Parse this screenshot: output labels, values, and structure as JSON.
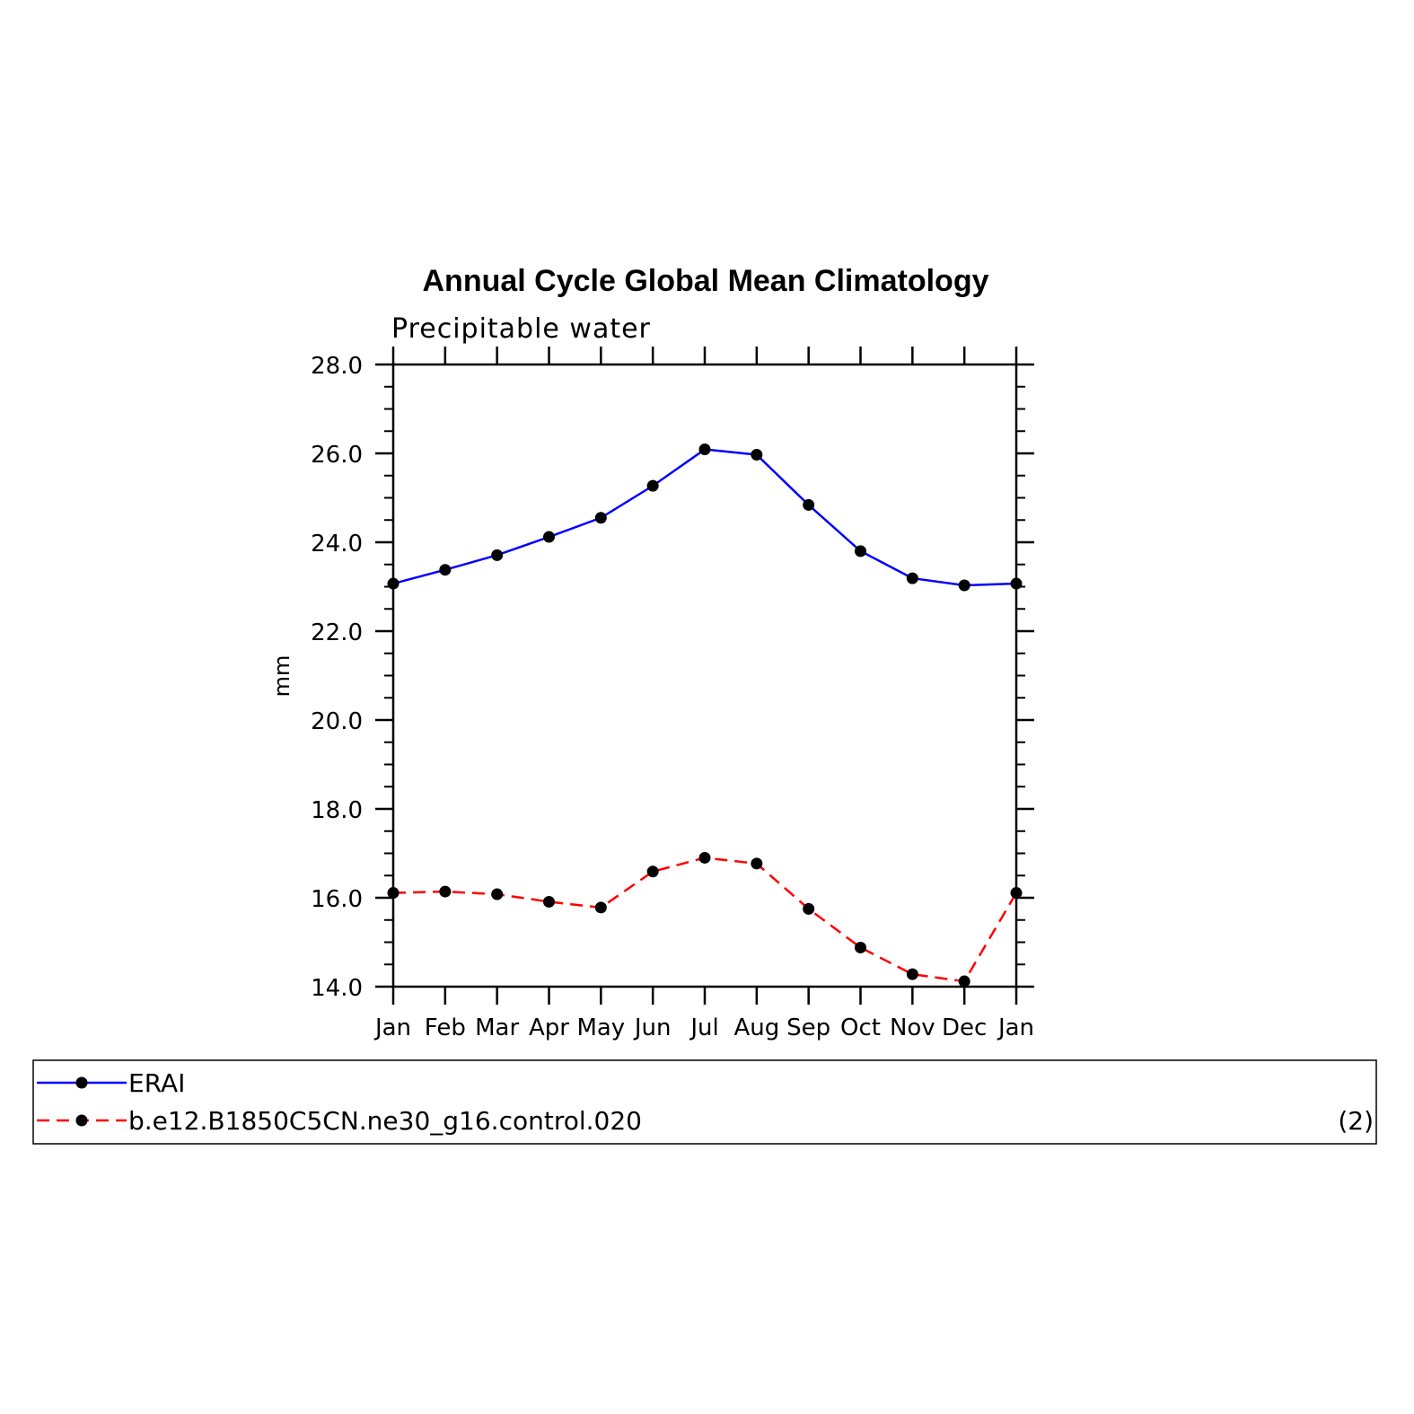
{
  "chart_data": {
    "type": "line",
    "title": "Annual Cycle Global Mean Climatology",
    "subtitle": "Precipitable water",
    "ylabel": "mm",
    "xlabel": "",
    "categories": [
      "Jan",
      "Feb",
      "Mar",
      "Apr",
      "May",
      "Jun",
      "Jul",
      "Aug",
      "Sep",
      "Oct",
      "Nov",
      "Dec",
      "Jan"
    ],
    "ylim": [
      14.0,
      28.0
    ],
    "yticks": [
      "14.0",
      "16.0",
      "18.0",
      "20.0",
      "22.0",
      "24.0",
      "26.0",
      "28.0"
    ],
    "grid": false,
    "legend_position": "bottom",
    "series": [
      {
        "name": "ERAI",
        "color": "#0000ff",
        "dash": "solid",
        "values": [
          23.07,
          23.38,
          23.71,
          24.12,
          24.55,
          25.27,
          26.09,
          25.97,
          24.84,
          23.8,
          23.19,
          23.03,
          23.07
        ]
      },
      {
        "name": "b.e12.B1850C5CN.ne30_g16.control.020",
        "color": "#ff0000",
        "dash": "dashed",
        "values": [
          16.11,
          16.14,
          16.08,
          15.91,
          15.78,
          16.59,
          16.9,
          16.77,
          15.75,
          14.88,
          14.28,
          14.12,
          16.11
        ]
      }
    ],
    "legend_note": "(2)"
  }
}
